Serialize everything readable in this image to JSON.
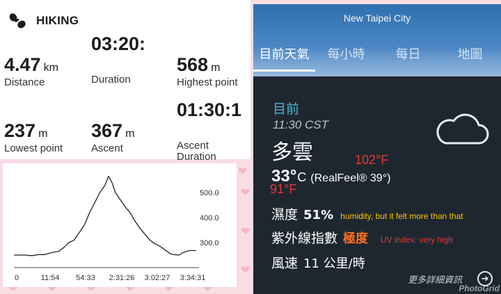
{
  "hiking": {
    "title": "HIKING",
    "icon": "shoe-print-icon",
    "stats": {
      "distance": {
        "value": "4.47",
        "unit": "km",
        "label": "Distance"
      },
      "duration": {
        "value": "03:20:",
        "unit": "",
        "label": "Duration"
      },
      "highest": {
        "value": "568",
        "unit": "m",
        "label": "Highest point"
      },
      "ascent_duration": {
        "value": "01:30:1",
        "unit": "",
        "label": "Ascent Duration"
      },
      "lowest": {
        "value": "237",
        "unit": "m",
        "label": "Lowest point"
      },
      "ascent": {
        "value": "367",
        "unit": "m",
        "label": "Ascent"
      }
    }
  },
  "chart_data": {
    "type": "line",
    "title": "",
    "xlabel": "",
    "ylabel": "",
    "x_tick_labels": [
      "0",
      "11:54",
      "54:33",
      "2:31:26",
      "3:02:27",
      "3:34:31"
    ],
    "y_tick_labels": [
      "500.0",
      "400.0",
      "300.0"
    ],
    "y_ticks": [
      500,
      400,
      300
    ],
    "ylim": [
      200,
      600
    ],
    "xlim": [
      0,
      212
    ],
    "grid": false,
    "series": [
      {
        "x": [
          0,
          8,
          14,
          18,
          22,
          28,
          36,
          44,
          52,
          58,
          64,
          70,
          76,
          82,
          88,
          94,
          100,
          106,
          110,
          114,
          118,
          124,
          130,
          136,
          140,
          146,
          152,
          158,
          164,
          170,
          176,
          182,
          186,
          192,
          198,
          204,
          212
        ],
        "values": [
          250,
          250,
          250,
          248,
          248,
          252,
          252,
          260,
          265,
          280,
          300,
          310,
          340,
          370,
          420,
          460,
          500,
          530,
          565,
          540,
          500,
          470,
          440,
          415,
          390,
          360,
          335,
          310,
          295,
          285,
          270,
          255,
          252,
          250,
          262,
          268,
          268
        ]
      }
    ],
    "color": "#222222"
  },
  "weather": {
    "city": "New Taipei City",
    "tabs": [
      "目前天氣",
      "每小時",
      "每日",
      "地圖"
    ],
    "active_tab": 0,
    "now_label": "目前",
    "time": "11:30 CST",
    "condition": "多雲",
    "condition_icon": "cloud-icon",
    "temp": "33°",
    "temp_unit": "C",
    "realfeel": "(RealFeel® 39°)",
    "annotation_f_high": "102°F",
    "annotation_f_now": "91°F",
    "humidity_label": "濕度",
    "humidity_value": "51%",
    "humidity_note": "humidity, but it felt more than that",
    "uv_label": "紫外線指數",
    "uv_value": "極度",
    "uv_note": "UV index: very high",
    "wind_label": "風速",
    "wind_value": "11 公里/時",
    "more_label": "更多詳細資訊",
    "watermark": "PhotoGrid"
  },
  "colors": {
    "uv_orange": "#ff6f1c",
    "annotation_red": "#e53935",
    "note_yellow": "#ffc400",
    "now_blue": "#4fb3d0"
  }
}
